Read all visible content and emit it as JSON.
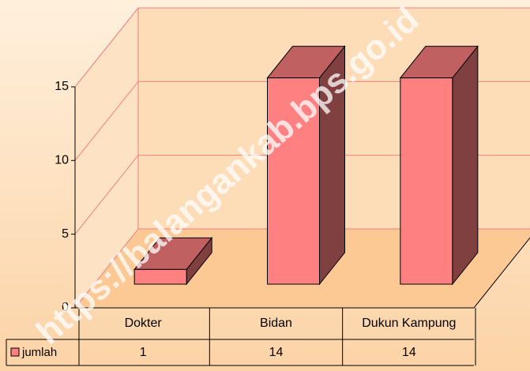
{
  "chart_data": {
    "type": "bar",
    "categories": [
      "Dokter",
      "Bidan",
      "Dukun Kampung"
    ],
    "series": [
      {
        "name": "jumlah",
        "color": "#ff8080",
        "values": [
          1,
          14,
          14
        ]
      }
    ],
    "ylim": [
      0,
      15
    ],
    "yticks": [
      0,
      5,
      10,
      15
    ],
    "grid": true,
    "watermark": "https://balangankab.bps.go.id"
  }
}
